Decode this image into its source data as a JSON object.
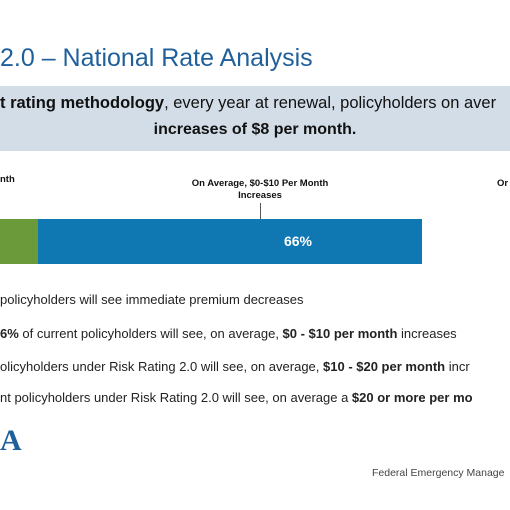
{
  "title": "2.0 – National Rate Analysis",
  "banner": {
    "line1_bold": "t rating methodology",
    "line1_rest": ", every year at renewal, policyholders on aver",
    "line2": "increases of $8 per month."
  },
  "callouts": {
    "left": "nth",
    "center_line1": "On Average, $0-$10 Per Month",
    "center_line2": "Increases",
    "right": "Or"
  },
  "colors": {
    "title": "#1f5f9a",
    "banner_bg": "#d3dde8",
    "green": "#6a9a3a",
    "blue": "#0f77b2"
  },
  "chart_data": {
    "type": "bar",
    "orientation": "horizontal-stacked",
    "series": [
      {
        "value": null,
        "color": "#6a9a3a"
      },
      {
        "value": 66,
        "label": "66%",
        "color": "#0f77b2"
      }
    ]
  },
  "bullets": [
    {
      "pre": "policyholders will see immediate premium decreases",
      "bold": "",
      "post": "",
      "bold2": "",
      "post2": ""
    },
    {
      "pre": "",
      "bold": "6%",
      "post": " of current policyholders will see, on average, ",
      "bold2": "$0 - $10 per month",
      "post2": " increases"
    },
    {
      "pre": "olicyholders under Risk Rating 2.0 will see, on average, ",
      "bold": "$10 - $20 per month",
      "post": " incr",
      "bold2": "",
      "post2": ""
    },
    {
      "pre": "nt policyholders under Risk Rating 2.0 will see, on average a ",
      "bold": "$20 or more per mo",
      "post": "",
      "bold2": "",
      "post2": ""
    }
  ],
  "logo": "A",
  "footer": "Federal Emergency Manage"
}
